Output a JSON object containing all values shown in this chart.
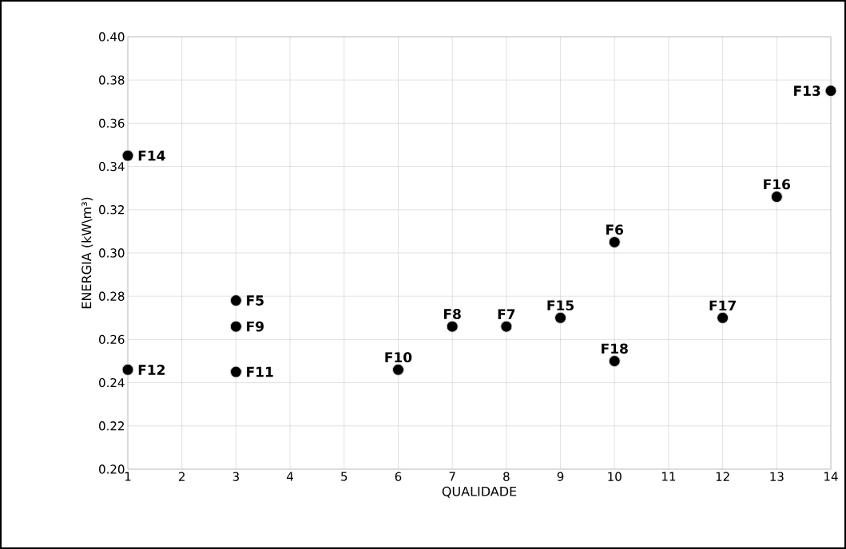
{
  "chart_data": {
    "type": "scatter",
    "xlabel": "QUALIDADE",
    "ylabel": "ENERGIA (kW\\m³)",
    "x": [
      1,
      1,
      3,
      3,
      3,
      6,
      7,
      8,
      9,
      10,
      10,
      12,
      13,
      14
    ],
    "values": [
      0.345,
      0.246,
      0.278,
      0.266,
      0.245,
      0.246,
      0.266,
      0.266,
      0.27,
      0.305,
      0.25,
      0.27,
      0.326,
      0.375
    ],
    "color": "#000000",
    "marker": "circle",
    "grid": true,
    "xlim": [
      1,
      14
    ],
    "xticks": [
      1,
      2,
      3,
      4,
      5,
      6,
      7,
      8,
      9,
      10,
      11,
      12,
      13,
      14
    ],
    "ylim": [
      0.2,
      0.4
    ],
    "yticks": [
      {
        "value": 0.2,
        "label": "0.20"
      },
      {
        "value": 0.22,
        "label": "0.22"
      },
      {
        "value": 0.24,
        "label": "0.24"
      },
      {
        "value": 0.26,
        "label": "0.26"
      },
      {
        "value": 0.28,
        "label": "0.28"
      },
      {
        "value": 0.3,
        "label": "0.30"
      },
      {
        "value": 0.32,
        "label": "0.32"
      },
      {
        "value": 0.34,
        "label": "0.34"
      },
      {
        "value": 0.36,
        "label": "0.36"
      },
      {
        "value": 0.38,
        "label": "0.38"
      },
      {
        "value": 0.4,
        "label": "0.40"
      }
    ],
    "annotations": [
      {
        "text": "F14",
        "x": 1,
        "y": 0.345
      },
      {
        "text": "F12",
        "x": 1,
        "y": 0.246
      },
      {
        "text": "F5",
        "x": 3,
        "y": 0.278
      },
      {
        "text": "F9",
        "x": 3,
        "y": 0.266
      },
      {
        "text": "F11",
        "x": 3,
        "y": 0.245
      },
      {
        "text": "F10",
        "x": 6,
        "y": 0.246
      },
      {
        "text": "F8",
        "x": 7,
        "y": 0.266
      },
      {
        "text": "F7",
        "x": 8,
        "y": 0.266
      },
      {
        "text": "F15",
        "x": 9,
        "y": 0.27
      },
      {
        "text": "F6",
        "x": 10,
        "y": 0.305
      },
      {
        "text": "F18",
        "x": 10,
        "y": 0.25
      },
      {
        "text": "F17",
        "x": 12,
        "y": 0.27
      },
      {
        "text": "F16",
        "x": 13,
        "y": 0.326
      },
      {
        "text": "F13",
        "x": 14,
        "y": 0.375
      }
    ]
  }
}
